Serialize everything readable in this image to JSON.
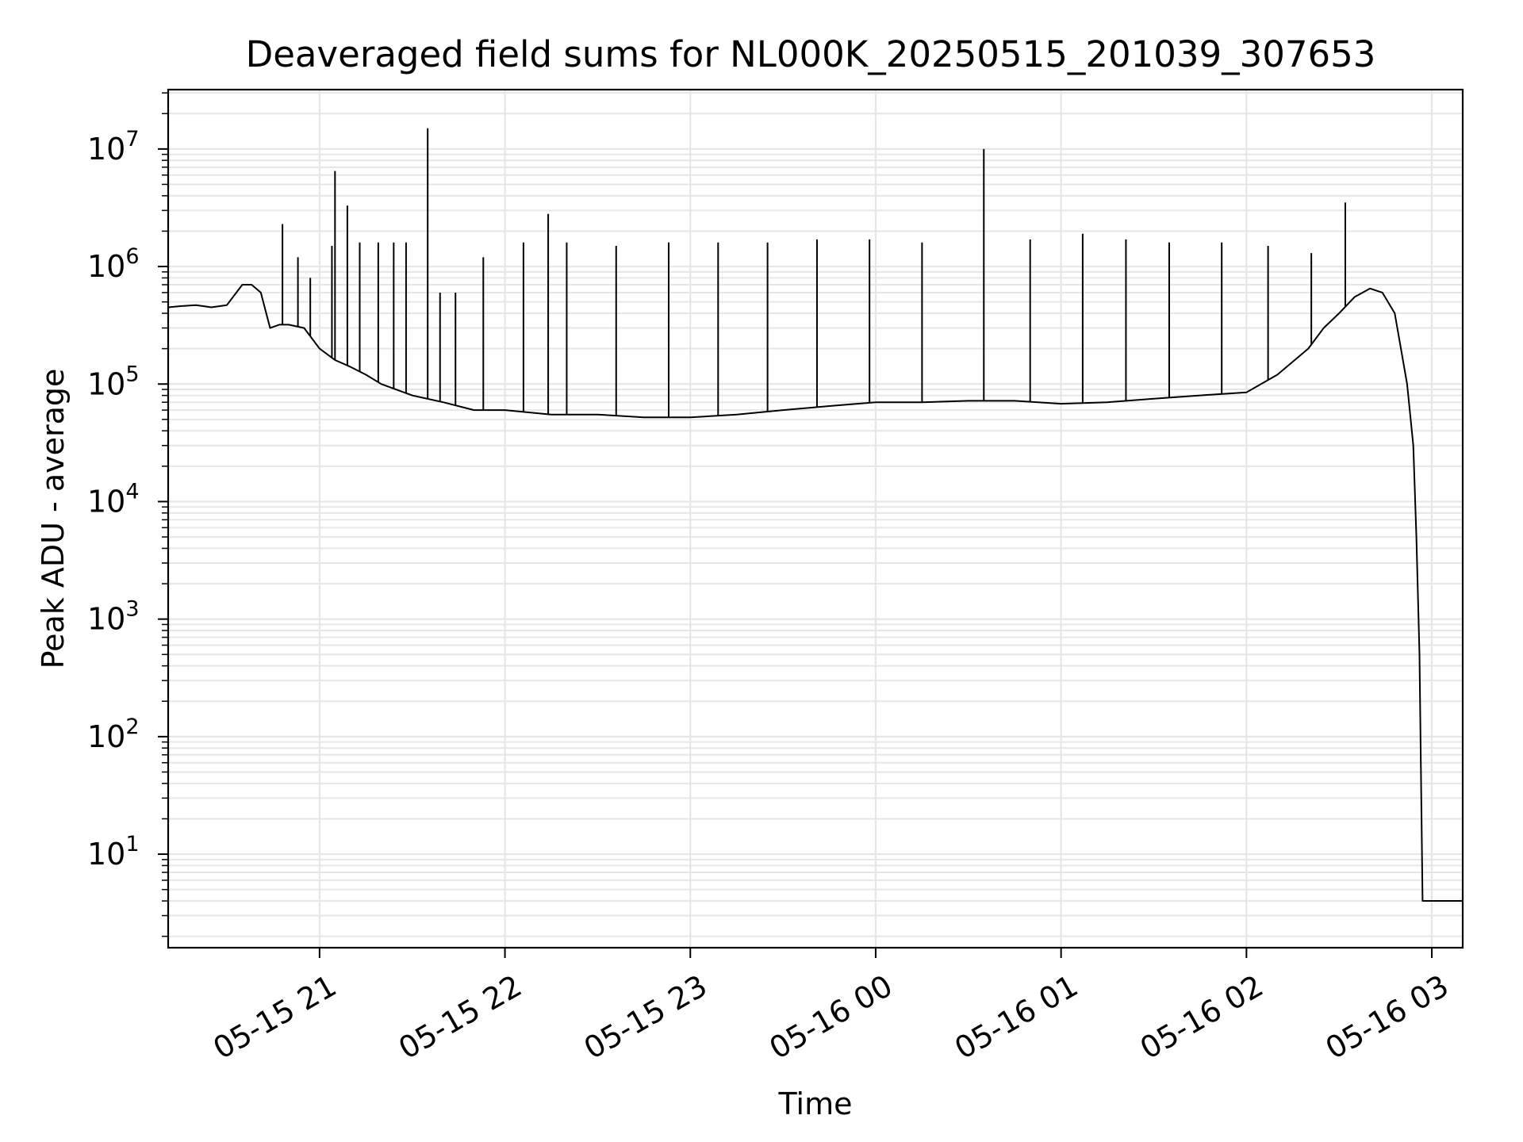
{
  "chart_data": {
    "type": "line",
    "title": "Deaveraged field sums for NL000K_20250515_201039_307653",
    "xlabel": "Time",
    "ylabel": "Peak ADU - average",
    "yscale": "log",
    "grid": true,
    "line_color": "#000000",
    "grid_color": "#e6e6e6",
    "xlim": [
      "2025-05-15 20:11",
      "2025-05-16 03:10"
    ],
    "ylim": [
      1.6,
      32000000
    ],
    "xticks": [
      {
        "t": "2025-05-15 21:00",
        "label": "05-15 21"
      },
      {
        "t": "2025-05-15 22:00",
        "label": "05-15 22"
      },
      {
        "t": "2025-05-15 23:00",
        "label": "05-15 23"
      },
      {
        "t": "2025-05-16 00:00",
        "label": "05-16 00"
      },
      {
        "t": "2025-05-16 01:00",
        "label": "05-16 01"
      },
      {
        "t": "2025-05-16 02:00",
        "label": "05-16 02"
      },
      {
        "t": "2025-05-16 03:00",
        "label": "05-16 03"
      }
    ],
    "yticks": [
      {
        "value": 10,
        "base": "10",
        "exp": "1"
      },
      {
        "value": 100,
        "base": "10",
        "exp": "2"
      },
      {
        "value": 1000,
        "base": "10",
        "exp": "3"
      },
      {
        "value": 10000,
        "base": "10",
        "exp": "4"
      },
      {
        "value": 100000,
        "base": "10",
        "exp": "5"
      },
      {
        "value": 1000000,
        "base": "10",
        "exp": "6"
      },
      {
        "value": 10000000,
        "base": "10",
        "exp": "7"
      }
    ],
    "series": [
      {
        "x": [
          "2025-05-15 20:11",
          "2025-05-15 20:15",
          "2025-05-15 20:20",
          "2025-05-15 20:25",
          "2025-05-15 20:30",
          "2025-05-15 20:35",
          "2025-05-15 20:38",
          "2025-05-15 20:41",
          "2025-05-15 20:44",
          "2025-05-15 20:47",
          "2025-05-15 20:50",
          "2025-05-15 20:55",
          "2025-05-15 21:00",
          "2025-05-15 21:05",
          "2025-05-15 21:10",
          "2025-05-15 21:15",
          "2025-05-15 21:20",
          "2025-05-15 21:30",
          "2025-05-15 21:40",
          "2025-05-15 21:50",
          "2025-05-15 22:00",
          "2025-05-15 22:15",
          "2025-05-15 22:30",
          "2025-05-15 22:45",
          "2025-05-15 23:00",
          "2025-05-15 23:15",
          "2025-05-15 23:30",
          "2025-05-15 23:45",
          "2025-05-16 00:00",
          "2025-05-16 00:15",
          "2025-05-16 00:30",
          "2025-05-16 00:45",
          "2025-05-16 01:00",
          "2025-05-16 01:15",
          "2025-05-16 01:30",
          "2025-05-16 01:45",
          "2025-05-16 02:00",
          "2025-05-16 02:10",
          "2025-05-16 02:20",
          "2025-05-16 02:25",
          "2025-05-16 02:30",
          "2025-05-16 02:35",
          "2025-05-16 02:40",
          "2025-05-16 02:44",
          "2025-05-16 02:48",
          "2025-05-16 02:50",
          "2025-05-16 02:52",
          "2025-05-16 02:54",
          "2025-05-16 02:55",
          "2025-05-16 02:56",
          "2025-05-16 02:57",
          "2025-05-16 03:00",
          "2025-05-16 03:05",
          "2025-05-16 03:10"
        ],
        "y": [
          450000,
          460000,
          470000,
          450000,
          470000,
          700000,
          700000,
          600000,
          300000,
          320000,
          320000,
          300000,
          200000,
          160000,
          140000,
          120000,
          100000,
          80000,
          70000,
          60000,
          60000,
          55000,
          55000,
          52000,
          52000,
          55000,
          60000,
          65000,
          70000,
          70000,
          72000,
          72000,
          68000,
          70000,
          75000,
          80000,
          85000,
          120000,
          200000,
          300000,
          400000,
          550000,
          650000,
          600000,
          400000,
          200000,
          100000,
          30000,
          5000,
          500,
          4,
          4,
          4,
          4
        ]
      }
    ],
    "spikes": [
      {
        "t": "2025-05-15 20:48",
        "value": 2300000
      },
      {
        "t": "2025-05-15 20:53",
        "value": 1200000
      },
      {
        "t": "2025-05-15 20:57",
        "value": 800000
      },
      {
        "t": "2025-05-15 21:04",
        "value": 1500000
      },
      {
        "t": "2025-05-15 21:05",
        "value": 6500000
      },
      {
        "t": "2025-05-15 21:09",
        "value": 3300000
      },
      {
        "t": "2025-05-15 21:13",
        "value": 1600000
      },
      {
        "t": "2025-05-15 21:19",
        "value": 1600000
      },
      {
        "t": "2025-05-15 21:24",
        "value": 1600000
      },
      {
        "t": "2025-05-15 21:28",
        "value": 1600000
      },
      {
        "t": "2025-05-15 21:35",
        "value": 15000000
      },
      {
        "t": "2025-05-15 21:39",
        "value": 600000
      },
      {
        "t": "2025-05-15 21:44",
        "value": 600000
      },
      {
        "t": "2025-05-15 21:53",
        "value": 1200000
      },
      {
        "t": "2025-05-15 22:06",
        "value": 1600000
      },
      {
        "t": "2025-05-15 22:14",
        "value": 2800000
      },
      {
        "t": "2025-05-15 22:20",
        "value": 1600000
      },
      {
        "t": "2025-05-15 22:36",
        "value": 1500000
      },
      {
        "t": "2025-05-15 22:53",
        "value": 1600000
      },
      {
        "t": "2025-05-15 23:09",
        "value": 1600000
      },
      {
        "t": "2025-05-15 23:25",
        "value": 1600000
      },
      {
        "t": "2025-05-15 23:41",
        "value": 1700000
      },
      {
        "t": "2025-05-15 23:58",
        "value": 1700000
      },
      {
        "t": "2025-05-16 00:15",
        "value": 1600000
      },
      {
        "t": "2025-05-16 00:35",
        "value": 10000000
      },
      {
        "t": "2025-05-16 00:50",
        "value": 1700000
      },
      {
        "t": "2025-05-16 01:07",
        "value": 1900000
      },
      {
        "t": "2025-05-16 01:21",
        "value": 1700000
      },
      {
        "t": "2025-05-16 01:35",
        "value": 1600000
      },
      {
        "t": "2025-05-16 01:52",
        "value": 1600000
      },
      {
        "t": "2025-05-16 02:07",
        "value": 1500000
      },
      {
        "t": "2025-05-16 02:21",
        "value": 1300000
      },
      {
        "t": "2025-05-16 02:32",
        "value": 3500000
      }
    ]
  }
}
